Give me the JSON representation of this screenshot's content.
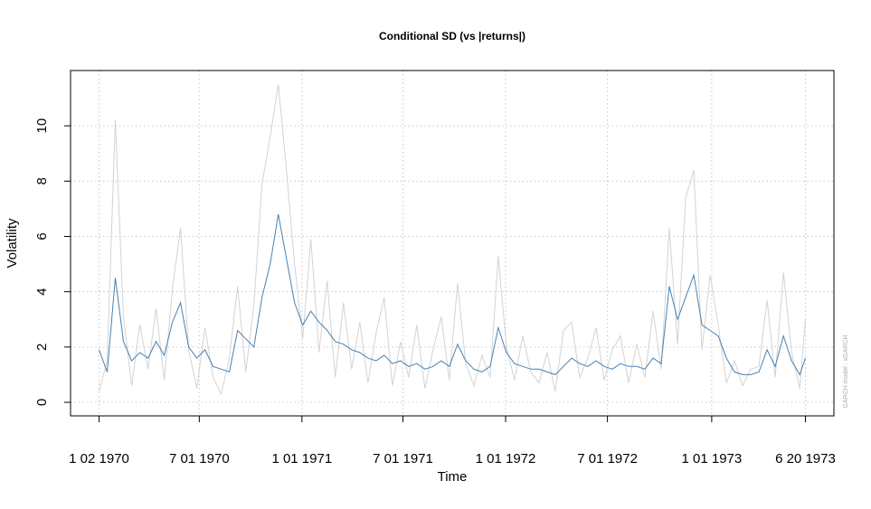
{
  "chart_data": {
    "type": "line",
    "title": "Conditional SD (vs |returns|)",
    "xlabel": "Time",
    "ylabel": "Volatility",
    "side_note": "GARCH model : sGARCH",
    "grid": true,
    "xlim": [
      -34,
      903
    ],
    "ylim": [
      -0.49,
      12.0
    ],
    "xticks": [
      {
        "value": 1,
        "label": "1 02 1970"
      },
      {
        "value": 124,
        "label": "7 01 1970"
      },
      {
        "value": 250,
        "label": "1 01 1971"
      },
      {
        "value": 374,
        "label": "7 01 1971"
      },
      {
        "value": 500,
        "label": "1 01 1972"
      },
      {
        "value": 625,
        "label": "7 01 1972"
      },
      {
        "value": 753,
        "label": "1 01 1973"
      },
      {
        "value": 868,
        "label": "6 20 1973"
      }
    ],
    "yticks": [
      0,
      2,
      4,
      6,
      8,
      10
    ],
    "x": [
      1,
      11,
      21,
      31,
      41,
      51,
      61,
      71,
      81,
      91,
      101,
      111,
      121,
      131,
      141,
      151,
      161,
      171,
      181,
      191,
      201,
      211,
      221,
      231,
      241,
      251,
      261,
      271,
      281,
      291,
      301,
      311,
      321,
      331,
      341,
      351,
      361,
      371,
      381,
      391,
      401,
      411,
      421,
      431,
      441,
      451,
      461,
      471,
      481,
      491,
      501,
      511,
      521,
      531,
      541,
      551,
      561,
      571,
      581,
      591,
      601,
      611,
      621,
      631,
      641,
      651,
      661,
      671,
      681,
      691,
      701,
      711,
      721,
      731,
      741,
      751,
      761,
      771,
      781,
      791,
      801,
      811,
      821,
      831,
      841,
      851,
      861,
      868
    ],
    "series": [
      {
        "color": "#d3d3d3",
        "values": [
          0.4,
          1.5,
          10.2,
          3.1,
          0.6,
          2.8,
          1.2,
          3.4,
          0.8,
          4.1,
          6.3,
          1.9,
          0.5,
          2.7,
          0.9,
          0.3,
          1.6,
          4.2,
          1.1,
          3.5,
          7.9,
          9.6,
          11.5,
          8.4,
          5.0,
          2.3,
          5.9,
          1.8,
          4.4,
          0.9,
          3.6,
          1.2,
          2.9,
          0.7,
          2.5,
          3.8,
          0.6,
          2.2,
          0.9,
          2.8,
          0.5,
          1.9,
          3.1,
          0.8,
          4.3,
          1.4,
          0.6,
          1.7,
          0.9,
          5.3,
          2.0,
          0.8,
          2.4,
          1.1,
          0.7,
          1.8,
          0.4,
          2.6,
          2.9,
          0.9,
          1.6,
          2.7,
          0.8,
          1.9,
          2.4,
          0.7,
          2.1,
          0.9,
          3.3,
          1.2,
          6.3,
          2.1,
          7.4,
          8.4,
          1.9,
          4.6,
          2.8,
          0.7,
          1.5,
          0.6,
          1.2,
          1.3,
          3.7,
          0.9,
          4.7,
          1.8,
          0.5,
          3.0
        ]
      },
      {
        "color": "#4682b4",
        "values": [
          1.9,
          1.1,
          4.5,
          2.2,
          1.5,
          1.8,
          1.6,
          2.2,
          1.7,
          2.9,
          3.6,
          2.0,
          1.6,
          1.9,
          1.3,
          1.2,
          1.1,
          2.6,
          2.3,
          2.0,
          3.8,
          5.0,
          6.8,
          5.2,
          3.6,
          2.8,
          3.3,
          2.9,
          2.6,
          2.2,
          2.1,
          1.9,
          1.8,
          1.6,
          1.5,
          1.7,
          1.4,
          1.5,
          1.3,
          1.4,
          1.2,
          1.3,
          1.5,
          1.3,
          2.1,
          1.5,
          1.2,
          1.1,
          1.3,
          2.7,
          1.8,
          1.4,
          1.3,
          1.2,
          1.2,
          1.1,
          1.0,
          1.3,
          1.6,
          1.4,
          1.3,
          1.5,
          1.3,
          1.2,
          1.4,
          1.3,
          1.3,
          1.2,
          1.6,
          1.4,
          4.2,
          3.0,
          3.8,
          4.6,
          2.8,
          2.6,
          2.4,
          1.6,
          1.1,
          1.0,
          1.0,
          1.1,
          1.9,
          1.3,
          2.4,
          1.5,
          1.0,
          1.6
        ]
      }
    ]
  }
}
